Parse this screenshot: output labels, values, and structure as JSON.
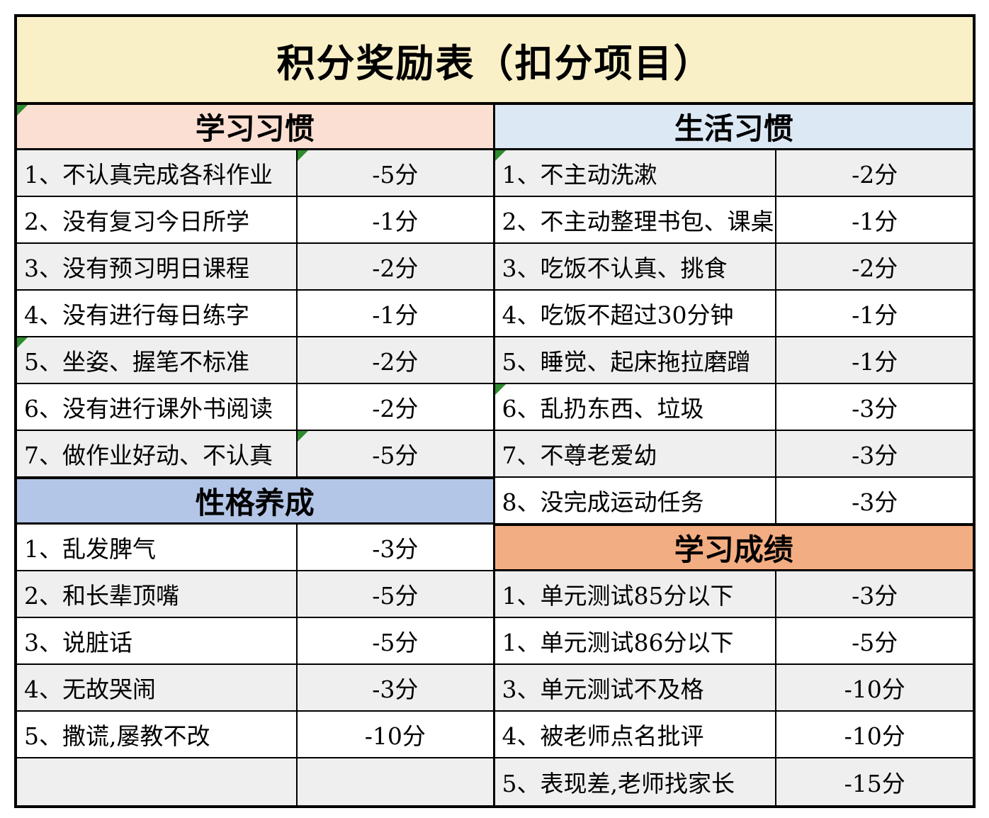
{
  "title": "积分奖励表（扣分项目）",
  "colors": {
    "title_bg": "#FAF0C8",
    "study_habits_bg": "#FBDFD2",
    "life_habits_bg": "#DCE9F5",
    "character_bg": "#B4C6E7",
    "grades_bg": "#F3AD82",
    "row_gray": "#EFEFEF",
    "row_white": "#FFFFFF",
    "border": "#000000",
    "error_marker": "#2E8B2E"
  },
  "icons": {
    "error_indicator_icon": "green-corner-triangle"
  },
  "left": {
    "section1": {
      "header": "学习习惯",
      "rows": [
        {
          "label": "1、不认真完成各科作业",
          "value": "-5分"
        },
        {
          "label": "2、没有复习今日所学",
          "value": "-1分"
        },
        {
          "label": "3、没有预习明日课程",
          "value": "-2分"
        },
        {
          "label": "4、没有进行每日练字",
          "value": "-1分"
        },
        {
          "label": "5、坐姿、握笔不标准",
          "value": "-2分"
        },
        {
          "label": "6、没有进行课外书阅读",
          "value": "-2分"
        },
        {
          "label": "7、做作业好动、不认真",
          "value": "-5分"
        }
      ]
    },
    "section2": {
      "header": "性格养成",
      "rows": [
        {
          "label": "1、乱发脾气",
          "value": "-3分"
        },
        {
          "label": "2、和长辈顶嘴",
          "value": "-5分"
        },
        {
          "label": "3、说脏话",
          "value": "-5分"
        },
        {
          "label": "4、无故哭闹",
          "value": "-3分"
        },
        {
          "label": "5、撒谎,屡教不改",
          "value": "-10分"
        },
        {
          "label": "",
          "value": ""
        }
      ]
    }
  },
  "right": {
    "section1": {
      "header": "生活习惯",
      "rows": [
        {
          "label": "1、不主动洗漱",
          "value": "-2分"
        },
        {
          "label": "2、不主动整理书包、课桌",
          "value": "-1分"
        },
        {
          "label": "3、吃饭不认真、挑食",
          "value": "-2分"
        },
        {
          "label": "4、吃饭不超过30分钟",
          "value": "-1分"
        },
        {
          "label": "5、睡觉、起床拖拉磨蹭",
          "value": "-1分"
        },
        {
          "label": "6、乱扔东西、垃圾",
          "value": "-3分"
        },
        {
          "label": "7、不尊老爱幼",
          "value": "-3分"
        },
        {
          "label": "8、没完成运动任务",
          "value": "-3分"
        }
      ]
    },
    "section2": {
      "header": "学习成绩",
      "rows": [
        {
          "label": "1、单元测试85分以下",
          "value": "-3分"
        },
        {
          "label": "1、单元测试86分以下",
          "value": "-5分"
        },
        {
          "label": "3、单元测试不及格",
          "value": "-10分"
        },
        {
          "label": "4、被老师点名批评",
          "value": "-10分"
        },
        {
          "label": "5、表现差,老师找家长",
          "value": "-15分"
        }
      ]
    }
  }
}
